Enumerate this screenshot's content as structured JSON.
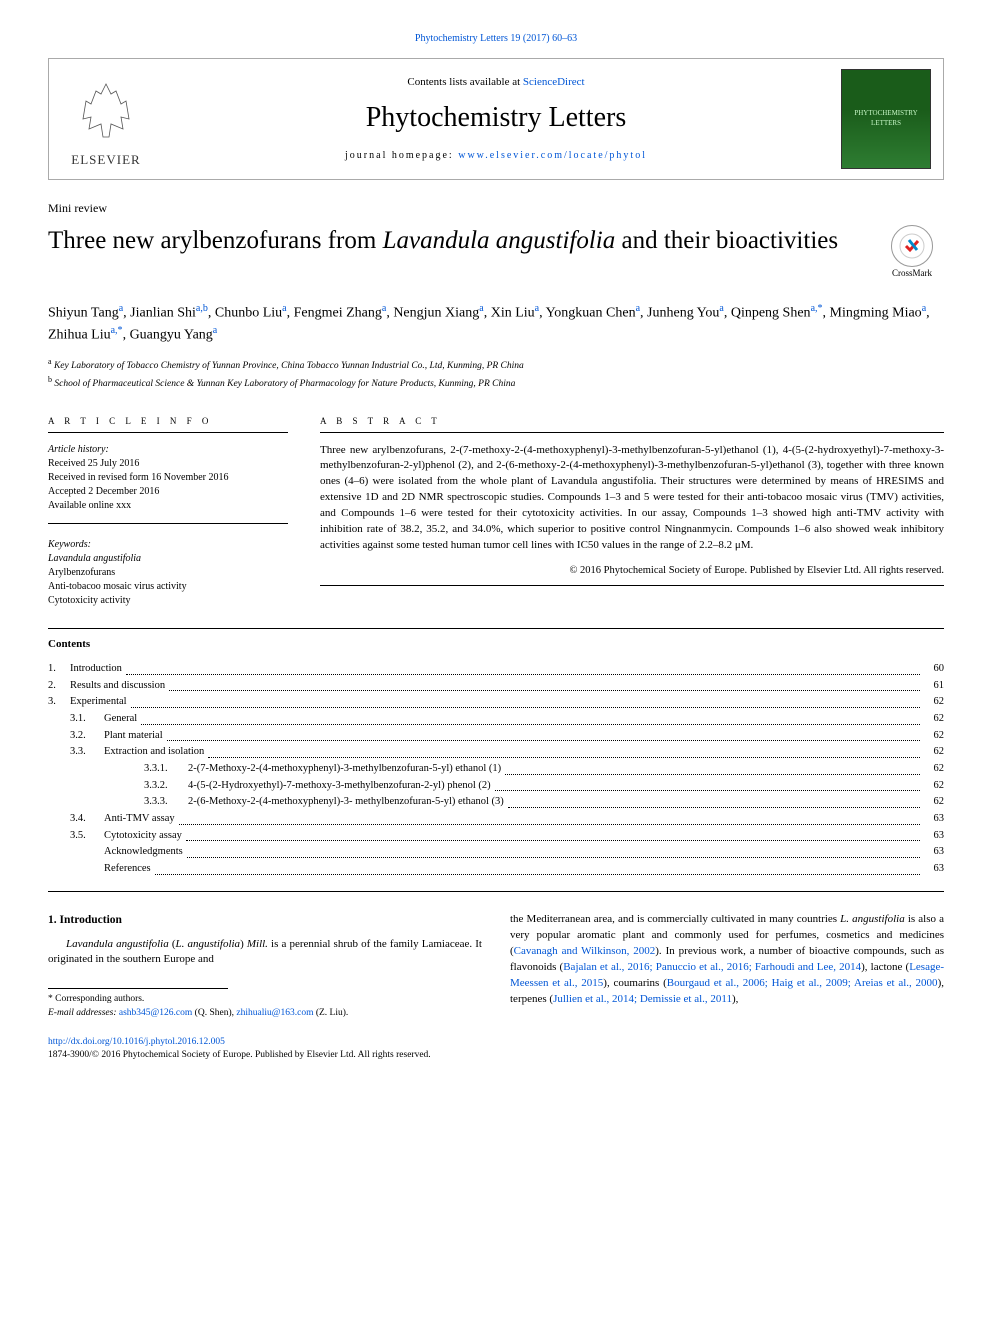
{
  "colors": {
    "link": "#0056d6",
    "text": "#000000",
    "border": "#aaaaaa",
    "bg": "#ffffff"
  },
  "top_citation": "Phytochemistry Letters 19 (2017) 60–63",
  "header": {
    "contents_prefix": "Contents lists available at ",
    "sciencedirect": "ScienceDirect",
    "journal": "Phytochemistry Letters",
    "homepage_prefix": "journal homepage: ",
    "homepage_url": "www.elsevier.com/locate/phytol",
    "elsevier": "ELSEVIER",
    "right_logo_text": "PHYTOCHEMISTRY LETTERS"
  },
  "article_type": "Mini review",
  "title_pre": "Three new arylbenzofurans from ",
  "title_em": "Lavandula angustifolia",
  "title_post": " and their bioactivities",
  "crossmark": "CrossMark",
  "authors_html": "Shiyun Tang<sup class='sup'>a</sup>, Jianlian Shi<sup class='sup'>a,b</sup>, Chunbo Liu<sup class='sup'>a</sup>, Fengmei Zhang<sup class='sup'>a</sup>, Nengjun Xiang<sup class='sup'>a</sup>, Xin Liu<sup class='sup'>a</sup>, Yongkuan Chen<sup class='sup'>a</sup>, Junheng You<sup class='sup'>a</sup>, Qinpeng Shen<sup class='sup'>a,*</sup>, Mingming Miao<sup class='sup'>a</sup>, Zhihua Liu<sup class='sup'>a,*</sup>, Guangyu Yang<sup class='sup'>a</sup>",
  "affiliations": [
    {
      "sup": "a",
      "text": "Key Laboratory of Tobacco Chemistry of Yunnan Province, China Tobacco Yunnan Industrial Co., Ltd, Kunming, PR China"
    },
    {
      "sup": "b",
      "text": "School of Pharmaceutical Science & Yunnan Key Laboratory of Pharmacology for Nature Products, Kunming, PR China"
    }
  ],
  "info": {
    "heading": "A R T I C L E   I N F O",
    "history_label": "Article history:",
    "received": "Received 25 July 2016",
    "revised": "Received in revised form 16 November 2016",
    "accepted": "Accepted 2 December 2016",
    "online": "Available online xxx",
    "keywords_label": "Keywords:",
    "keywords": [
      "Lavandula angustifolia",
      "Arylbenzofurans",
      "Anti-tobacoo mosaic virus activity",
      "Cytotoxicity activity"
    ]
  },
  "abstract": {
    "heading": "A B S T R A C T",
    "text": "Three new arylbenzofurans, 2-(7-methoxy-2-(4-methoxyphenyl)-3-methylbenzofuran-5-yl)ethanol (1), 4-(5-(2-hydroxyethyl)-7-methoxy-3-methylbenzofuran-2-yl)phenol (2), and 2-(6-methoxy-2-(4-methoxyphenyl)-3-methylbenzofuran-5-yl)ethanol (3), together with three known ones (4–6) were isolated from the whole plant of Lavandula angustifolia. Their structures were determined by means of HRESIMS and extensive 1D and 2D NMR spectroscopic studies. Compounds 1–3 and 5 were tested for their anti-tobacoo mosaic virus (TMV) activities, and Compounds 1–6 were tested for their cytotoxicity activities. In our assay, Compounds 1–3 showed high anti-TMV activity with inhibition rate of 38.2, 35.2, and 34.0%, which superior to positive control Ningnanmycin. Compounds 1–6 also showed weak inhibitory activities against some tested human tumor cell lines with IC50 values in the range of 2.2–8.2 μM.",
    "copyright": "© 2016 Phytochemical Society of Europe. Published by Elsevier Ltd. All rights reserved."
  },
  "contents_heading": "Contents",
  "toc": [
    {
      "num": "1.",
      "label": "Introduction",
      "page": "60",
      "indent": 0
    },
    {
      "num": "2.",
      "label": "Results and discussion",
      "page": "61",
      "indent": 0
    },
    {
      "num": "3.",
      "label": "Experimental",
      "page": "62",
      "indent": 0
    },
    {
      "num": "3.1.",
      "label": "General",
      "page": "62",
      "indent": 1
    },
    {
      "num": "3.2.",
      "label": "Plant material",
      "page": "62",
      "indent": 1
    },
    {
      "num": "3.3.",
      "label": "Extraction and isolation",
      "page": "62",
      "indent": 1
    },
    {
      "num": "3.3.1.",
      "label": "2-(7-Methoxy-2-(4-methoxyphenyl)-3-methylbenzofuran-5-yl) ethanol (1)",
      "page": "62",
      "indent": 2
    },
    {
      "num": "3.3.2.",
      "label": "4-(5-(2-Hydroxyethyl)-7-methoxy-3-methylbenzofuran-2-yl) phenol (2)",
      "page": "62",
      "indent": 2
    },
    {
      "num": "3.3.3.",
      "label": "2-(6-Methoxy-2-(4-methoxyphenyl)-3- methylbenzofuran-5-yl) ethanol (3)",
      "page": "62",
      "indent": 2
    },
    {
      "num": "3.4.",
      "label": "Anti-TMV assay",
      "page": "63",
      "indent": 1
    },
    {
      "num": "3.5.",
      "label": "Cytotoxicity assay",
      "page": "63",
      "indent": 1
    },
    {
      "num": "",
      "label": "Acknowledgments",
      "page": "63",
      "indent": 1
    },
    {
      "num": "",
      "label": "References",
      "page": "63",
      "indent": 1
    }
  ],
  "intro_heading": "1. Introduction",
  "intro_col1": "Lavandula angustifolia (L. angustifolia) Mill. is a perennial shrub of the family Lamiaceae. It originated in the southern Europe and",
  "intro_col2": "the Mediterranean area, and is commercially cultivated in many countries L. angustifolia is also a very popular aromatic plant and commonly used for perfumes, cosmetics and medicines (Cavanagh and Wilkinson, 2002). In previous work, a number of bioactive compounds, such as flavonoids (Bajalan et al., 2016; Panuccio et al., 2016; Farhoudi and Lee, 2014), lactone (Lesage-Meessen et al., 2015), coumarins (Bourgaud et al., 2006; Haig et al., 2009; Areias et al., 2000), terpenes (Jullien et al., 2014; Demissie et al., 2011),",
  "footnote": {
    "corresponding": "* Corresponding authors.",
    "emails_prefix": "E-mail addresses: ",
    "email1": "ashb345@126.com",
    "name1": " (Q. Shen), ",
    "email2": "zhihualiu@163.com",
    "name2": " (Z. Liu)."
  },
  "doi": {
    "url": "http://dx.doi.org/10.1016/j.phytol.2016.12.005",
    "issn_line": "1874-3900/© 2016 Phytochemical Society of Europe. Published by Elsevier Ltd. All rights reserved."
  }
}
